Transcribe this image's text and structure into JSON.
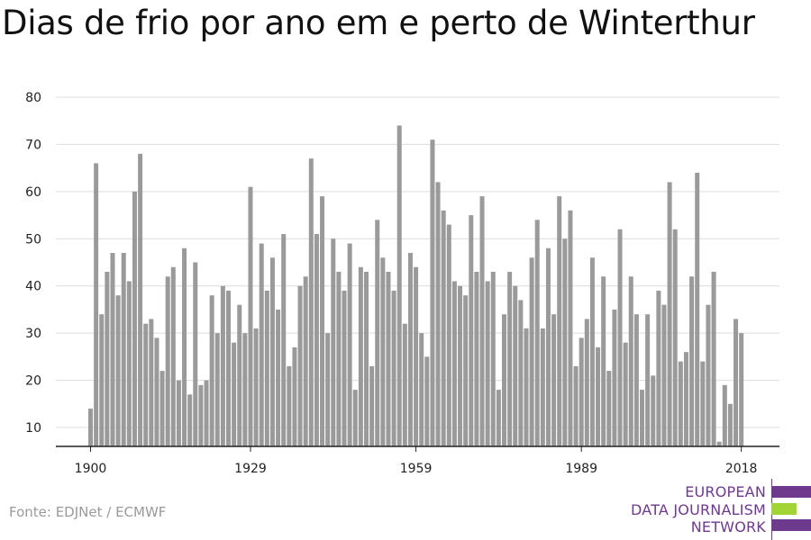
{
  "chart_data": {
    "type": "bar",
    "title": "Dias de frio por ano em e perto de Winterthur",
    "xlabel": "",
    "ylabel": "",
    "x_start": 1900,
    "x": [
      1900,
      1901,
      1902,
      1903,
      1904,
      1905,
      1906,
      1907,
      1908,
      1909,
      1910,
      1911,
      1912,
      1913,
      1914,
      1915,
      1916,
      1917,
      1918,
      1919,
      1920,
      1921,
      1922,
      1923,
      1924,
      1925,
      1926,
      1927,
      1928,
      1929,
      1930,
      1931,
      1932,
      1933,
      1934,
      1935,
      1936,
      1937,
      1938,
      1939,
      1940,
      1941,
      1942,
      1943,
      1944,
      1945,
      1946,
      1947,
      1948,
      1949,
      1950,
      1951,
      1952,
      1953,
      1954,
      1955,
      1956,
      1957,
      1958,
      1959,
      1960,
      1961,
      1962,
      1963,
      1964,
      1965,
      1966,
      1967,
      1968,
      1969,
      1970,
      1971,
      1972,
      1973,
      1974,
      1975,
      1976,
      1977,
      1978,
      1979,
      1980,
      1981,
      1982,
      1983,
      1984,
      1985,
      1986,
      1987,
      1988,
      1989,
      1990,
      1991,
      1992,
      1993,
      1994,
      1995,
      1996,
      1997,
      1998,
      1999,
      2000,
      2001,
      2002,
      2003,
      2004,
      2005,
      2006,
      2007,
      2008,
      2009,
      2010,
      2011,
      2012,
      2013,
      2014,
      2015,
      2016,
      2017,
      2018
    ],
    "values": [
      14,
      66,
      34,
      43,
      47,
      38,
      47,
      41,
      60,
      68,
      32,
      33,
      29,
      22,
      42,
      44,
      20,
      48,
      17,
      45,
      19,
      20,
      38,
      30,
      40,
      39,
      28,
      36,
      30,
      61,
      31,
      49,
      39,
      46,
      35,
      51,
      23,
      27,
      40,
      42,
      67,
      51,
      59,
      30,
      50,
      43,
      39,
      49,
      18,
      44,
      43,
      23,
      54,
      46,
      43,
      39,
      74,
      32,
      47,
      44,
      30,
      25,
      71,
      62,
      56,
      53,
      41,
      40,
      38,
      55,
      43,
      59,
      41,
      43,
      18,
      34,
      43,
      40,
      37,
      31,
      46,
      54,
      31,
      48,
      34,
      59,
      50,
      56,
      23,
      29,
      33,
      46,
      27,
      42,
      22,
      35,
      52,
      28,
      42,
      34,
      18,
      34,
      21,
      39,
      36,
      62,
      52,
      24,
      26,
      42,
      64,
      24,
      36,
      43,
      7,
      19,
      15,
      33,
      30
    ],
    "ylim": [
      6,
      80
    ],
    "yticks": [
      10,
      20,
      30,
      40,
      50,
      60,
      70,
      80
    ],
    "xticks": [
      1900,
      1929,
      1959,
      1989,
      2018
    ],
    "grid": true,
    "color": "#9a9a9a"
  },
  "source": "Fonte: EDJNet / ECMWF",
  "logo": {
    "lines": [
      "EUROPEAN",
      "DATA JOURNALISM",
      "NETWORK"
    ],
    "colors": {
      "purple": "#6e3a8e",
      "green": "#a3d436"
    }
  }
}
